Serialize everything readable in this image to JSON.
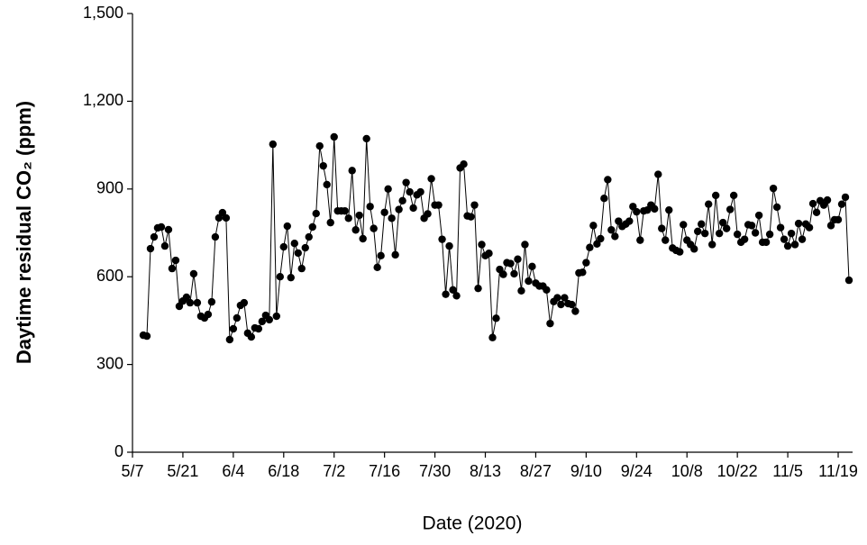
{
  "chart_data": {
    "type": "line",
    "x_label": "Date (2020)",
    "y_label": "Daytime residual CO₂ (ppm)",
    "color": "#000000",
    "x": [
      "5/10",
      "5/11",
      "5/12",
      "5/13",
      "5/14",
      "5/15",
      "5/16",
      "5/17",
      "5/18",
      "5/19",
      "5/20",
      "5/21",
      "5/22",
      "5/23",
      "5/24",
      "5/25",
      "5/26",
      "5/27",
      "5/28",
      "5/29",
      "5/30",
      "5/31",
      "6/1",
      "6/2",
      "6/3",
      "6/4",
      "6/5",
      "6/6",
      "6/7",
      "6/8",
      "6/9",
      "6/10",
      "6/11",
      "6/12",
      "6/13",
      "6/14",
      "6/15",
      "6/16",
      "6/17",
      "6/18",
      "6/19",
      "6/20",
      "6/21",
      "6/22",
      "6/23",
      "6/24",
      "6/25",
      "6/26",
      "6/27",
      "6/28",
      "6/29",
      "6/30",
      "7/1",
      "7/2",
      "7/3",
      "7/4",
      "7/5",
      "7/6",
      "7/7",
      "7/8",
      "7/9",
      "7/10",
      "7/11",
      "7/12",
      "7/13",
      "7/14",
      "7/15",
      "7/16",
      "7/17",
      "7/18",
      "7/19",
      "7/20",
      "7/21",
      "7/22",
      "7/23",
      "7/24",
      "7/25",
      "7/26",
      "7/27",
      "7/28",
      "7/29",
      "7/30",
      "7/31",
      "8/1",
      "8/2",
      "8/3",
      "8/4",
      "8/5",
      "8/6",
      "8/7",
      "8/8",
      "8/9",
      "8/10",
      "8/11",
      "8/12",
      "8/13",
      "8/14",
      "8/15",
      "8/16",
      "8/17",
      "8/18",
      "8/19",
      "8/20",
      "8/21",
      "8/22",
      "8/23",
      "8/24",
      "8/25",
      "8/26",
      "8/27",
      "8/28",
      "8/29",
      "8/30",
      "8/31",
      "9/1",
      "9/2",
      "9/3",
      "9/4",
      "9/5",
      "9/6",
      "9/7",
      "9/8",
      "9/9",
      "9/10",
      "9/11",
      "9/12",
      "9/13",
      "9/14",
      "9/15",
      "9/16",
      "9/17",
      "9/18",
      "9/19",
      "9/20",
      "9/21",
      "9/22",
      "9/23",
      "9/24",
      "9/25",
      "9/26",
      "9/27",
      "9/28",
      "9/29",
      "9/30",
      "10/1",
      "10/2",
      "10/3",
      "10/4",
      "10/5",
      "10/6",
      "10/7",
      "10/8",
      "10/9",
      "10/10",
      "10/11",
      "10/12",
      "10/13",
      "10/14",
      "10/15",
      "10/16",
      "10/17",
      "10/18",
      "10/19",
      "10/20",
      "10/21",
      "10/22",
      "10/23",
      "10/24",
      "10/25",
      "10/26",
      "10/27",
      "10/28",
      "10/29",
      "10/30",
      "10/31",
      "11/1",
      "11/2",
      "11/3",
      "11/4",
      "11/5",
      "11/6",
      "11/7",
      "11/8",
      "11/9",
      "11/10",
      "11/11",
      "11/12",
      "11/13",
      "11/14",
      "11/15",
      "11/16",
      "11/17",
      "11/18",
      "11/19",
      "11/20",
      "11/21",
      "11/22"
    ],
    "values": [
      400,
      397,
      696,
      736,
      767,
      770,
      705,
      761,
      628,
      656,
      499,
      517,
      530,
      511,
      610,
      511,
      465,
      459,
      471,
      514,
      736,
      801,
      819,
      801,
      385,
      422,
      459,
      502,
      511,
      407,
      394,
      425,
      422,
      447,
      468,
      453,
      1053,
      465,
      600,
      702,
      773,
      597,
      714,
      681,
      628,
      699,
      736,
      770,
      816,
      1047,
      979,
      915,
      785,
      1078,
      825,
      825,
      825,
      800,
      963,
      760,
      810,
      730,
      1072,
      840,
      765,
      632,
      672,
      820,
      900,
      800,
      675,
      830,
      860,
      922,
      890,
      835,
      880,
      890,
      800,
      815,
      935,
      845,
      845,
      728,
      540,
      705,
      555,
      535,
      972,
      985,
      808,
      805,
      845,
      560,
      710,
      672,
      680,
      392,
      458,
      625,
      608,
      648,
      645,
      610,
      660,
      552,
      710,
      585,
      635,
      578,
      568,
      568,
      555,
      440,
      515,
      528,
      505,
      528,
      508,
      505,
      482,
      613,
      615,
      648,
      700,
      775,
      712,
      730,
      868,
      932,
      760,
      738,
      790,
      772,
      780,
      790,
      840,
      822,
      725,
      825,
      828,
      845,
      832,
      950,
      765,
      725,
      828,
      698,
      690,
      685,
      778,
      725,
      710,
      695,
      755,
      780,
      748,
      848,
      710,
      878,
      748,
      785,
      765,
      830,
      878,
      745,
      718,
      728,
      778,
      775,
      750,
      810,
      718,
      718,
      745,
      902,
      838,
      768,
      728,
      705,
      748,
      710,
      782,
      728,
      780,
      768,
      850,
      820,
      860,
      845,
      862,
      775,
      795,
      795,
      848,
      872,
      588
    ],
    "xlim": [
      "5/7",
      "11/23"
    ],
    "xticks": [
      "5/7",
      "5/21",
      "6/4",
      "6/18",
      "7/2",
      "7/16",
      "7/30",
      "8/13",
      "8/27",
      "9/10",
      "9/24",
      "10/8",
      "10/22",
      "11/5",
      "11/19"
    ],
    "ylim": [
      0,
      1500
    ],
    "yticks": [
      0,
      300,
      600,
      900,
      {
        "value": 1200,
        "label": "1,200"
      },
      {
        "value": 1500,
        "label": "1,500"
      }
    ]
  }
}
